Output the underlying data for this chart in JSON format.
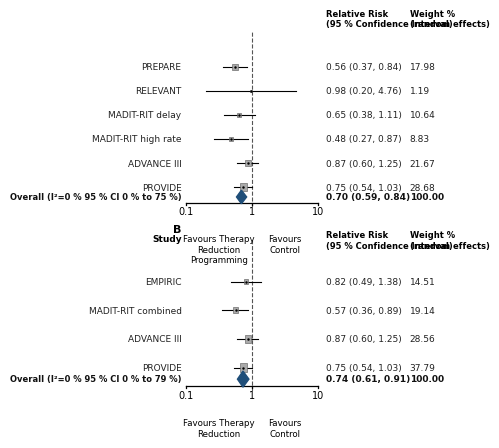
{
  "panel_A": {
    "studies": [
      {
        "name": "PREPARE",
        "rr": 0.56,
        "ci_lo": 0.37,
        "ci_hi": 0.84,
        "weight": 17.98,
        "arrow_lo": false,
        "arrow_hi": false
      },
      {
        "name": "RELEVANT",
        "rr": 0.98,
        "ci_lo": 0.2,
        "ci_hi": 4.76,
        "weight": 1.19,
        "arrow_lo": false,
        "arrow_hi": true
      },
      {
        "name": "MADIT-RIT delay",
        "rr": 0.65,
        "ci_lo": 0.38,
        "ci_hi": 1.11,
        "weight": 10.64,
        "arrow_lo": false,
        "arrow_hi": false
      },
      {
        "name": "MADIT-RIT high rate",
        "rr": 0.48,
        "ci_lo": 0.27,
        "ci_hi": 0.87,
        "weight": 8.83,
        "arrow_lo": true,
        "arrow_hi": false
      },
      {
        "name": "ADVANCE III",
        "rr": 0.87,
        "ci_lo": 0.6,
        "ci_hi": 1.25,
        "weight": 21.67,
        "arrow_lo": false,
        "arrow_hi": false
      },
      {
        "name": "PROVIDE",
        "rr": 0.75,
        "ci_lo": 0.54,
        "ci_hi": 1.03,
        "weight": 28.68,
        "arrow_lo": false,
        "arrow_hi": false
      }
    ],
    "overall": {
      "rr": 0.7,
      "ci_lo": 0.59,
      "ci_hi": 0.84,
      "label": "Overall (I²=0 % 95 % CI 0 % to 75 %)"
    },
    "xlabel_left": "Favours Therapy\nReduction\nProgramming",
    "xlabel_right": "Favours\nControl"
  },
  "panel_B": {
    "studies": [
      {
        "name": "EMPIRIC",
        "rr": 0.82,
        "ci_lo": 0.49,
        "ci_hi": 1.38,
        "weight": 14.51,
        "arrow_lo": false,
        "arrow_hi": false
      },
      {
        "name": "MADIT-RIT combined",
        "rr": 0.57,
        "ci_lo": 0.36,
        "ci_hi": 0.89,
        "weight": 19.14,
        "arrow_lo": true,
        "arrow_hi": false
      },
      {
        "name": "ADVANCE III",
        "rr": 0.87,
        "ci_lo": 0.6,
        "ci_hi": 1.25,
        "weight": 28.56,
        "arrow_lo": false,
        "arrow_hi": false
      },
      {
        "name": "PROVIDE",
        "rr": 0.75,
        "ci_lo": 0.54,
        "ci_hi": 1.03,
        "weight": 37.79,
        "arrow_lo": false,
        "arrow_hi": false
      }
    ],
    "overall": {
      "rr": 0.74,
      "ci_lo": 0.61,
      "ci_hi": 0.91,
      "label": "Overall (I²=0 % 95 % CI 0 % to 79 %)"
    },
    "xlabel_left": "Favours Therapy\nReduction",
    "xlabel_right": "Favours\nControl"
  },
  "xlog_min": -2.303,
  "xlog_max": 2.303,
  "xtick_log": [
    -2.303,
    0.0,
    2.303
  ],
  "xtick_lbl": [
    "0.1",
    "1",
    "10"
  ],
  "diamond_color": "#1f4e79",
  "box_color": "#aaaaaa",
  "text_color": "#222222",
  "bold_color": "#111111"
}
